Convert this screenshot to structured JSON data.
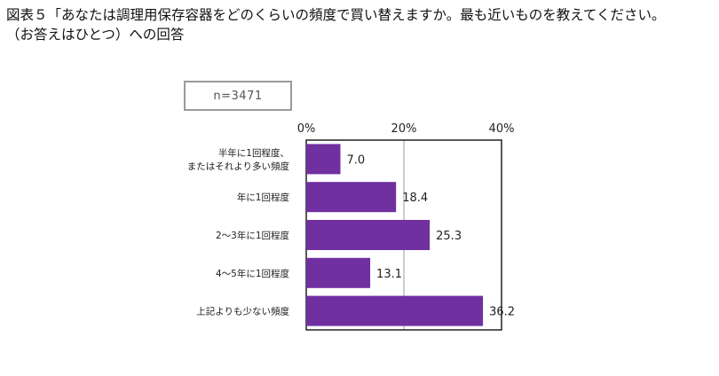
{
  "title": {
    "line1": "図表５「あなたは調理用保存容器をどのくらいの頻度で買い替えますか。最も近いものを教えてください。",
    "line2": "（お答えはひとつ）への回答"
  },
  "sample_size": "n=3471",
  "chart_data": {
    "type": "bar",
    "orientation": "horizontal",
    "categories": [
      [
        "半年に1回程度、",
        "またはそれより多い頻度"
      ],
      [
        "年に1回程度"
      ],
      [
        "2～3年に1回程度"
      ],
      [
        "4～5年に1回程度"
      ],
      [
        "上記よりも少ない頻度"
      ]
    ],
    "values": [
      7.0,
      18.4,
      25.3,
      13.1,
      36.2
    ],
    "value_labels": [
      "7.0",
      "18.4",
      "25.3",
      "13.1",
      "36.2"
    ],
    "xlim": [
      0,
      40
    ],
    "xticks": [
      0,
      20,
      40
    ],
    "xtick_labels": [
      "0%",
      "20%",
      "40%"
    ],
    "bar_color": "#7030a0",
    "gridlines": "vertical at 20%",
    "legend": "none"
  }
}
